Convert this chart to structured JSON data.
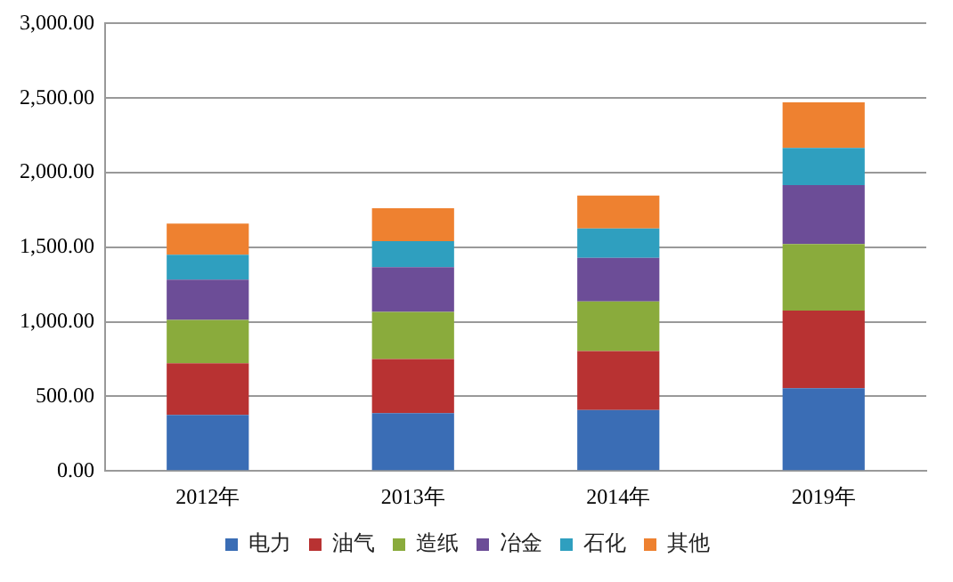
{
  "chart_data": {
    "type": "bar",
    "stacked": true,
    "categories": [
      "2012年",
      "2013年",
      "2014年",
      "2019年"
    ],
    "series": [
      {
        "name": "电力",
        "color": "#3a6db5",
        "values": [
          375,
          387,
          408,
          554
        ]
      },
      {
        "name": "油气",
        "color": "#b83232",
        "values": [
          346,
          363,
          396,
          521
        ]
      },
      {
        "name": "造纸",
        "color": "#8aab3c",
        "values": [
          291,
          316,
          333,
          446
        ]
      },
      {
        "name": "冶金",
        "color": "#6c4d97",
        "values": [
          271,
          300,
          292,
          395
        ]
      },
      {
        "name": "石化",
        "color": "#2f9fbf",
        "values": [
          167,
          175,
          196,
          250
        ]
      },
      {
        "name": "其他",
        "color": "#ee8130",
        "values": [
          209,
          221,
          221,
          305
        ]
      }
    ],
    "ylim": [
      0,
      3000
    ],
    "yticks": [
      {
        "value": 0,
        "label": "0.00"
      },
      {
        "value": 500,
        "label": "500.00"
      },
      {
        "value": 1000,
        "label": "1,000.00"
      },
      {
        "value": 1500,
        "label": "1,500.00"
      },
      {
        "value": 2000,
        "label": "2,000.00"
      },
      {
        "value": 2500,
        "label": "2,500.00"
      },
      {
        "value": 3000,
        "label": "3,000.00"
      }
    ],
    "grid": "y",
    "legend": "bottom"
  }
}
